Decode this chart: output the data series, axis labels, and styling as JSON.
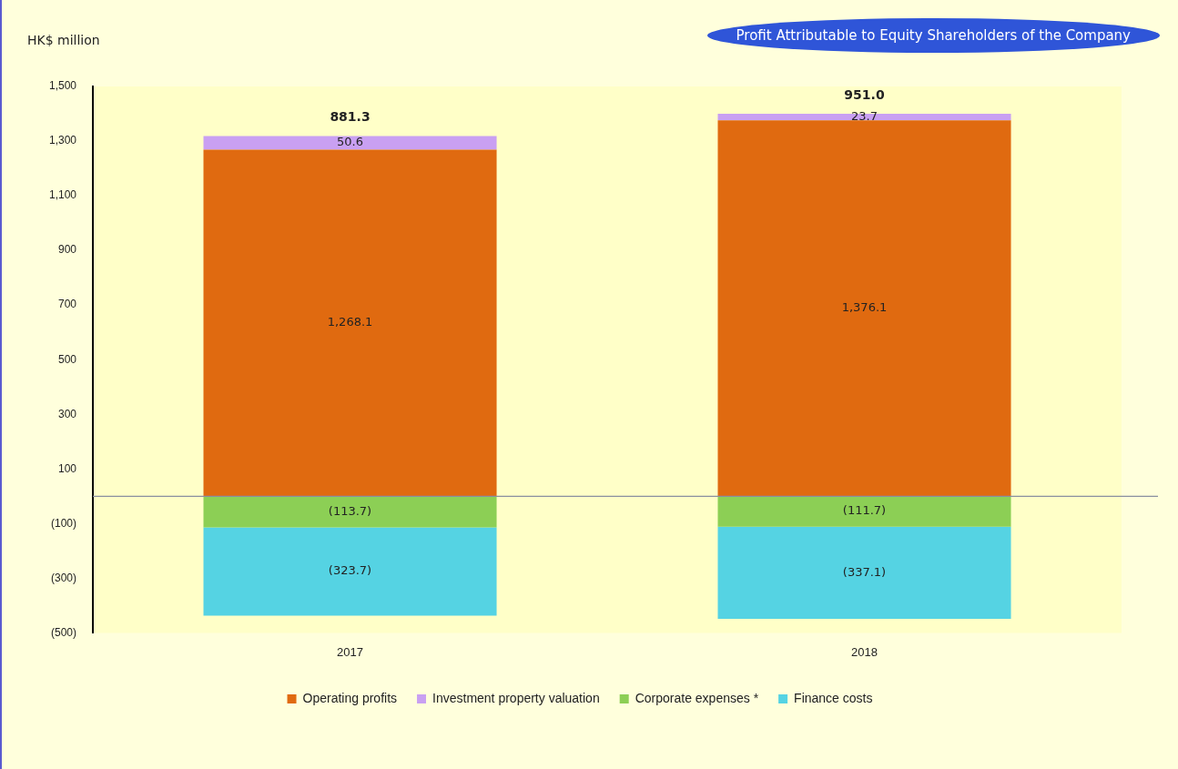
{
  "chart_data": {
    "type": "bar",
    "stacked": true,
    "ylabel": "HK$ million",
    "annotations": [
      "Profit Attributable to Equity Shareholders of the Company"
    ],
    "categories": [
      "2017",
      "2018"
    ],
    "series": [
      {
        "name": "Operating profits",
        "color": "#e06a10",
        "values": [
          1268.1,
          1376.1
        ],
        "value_labels": [
          "1,268.1",
          "1,376.1"
        ]
      },
      {
        "name": "Investment property valuation",
        "color": "#c9a0f2",
        "values": [
          50.6,
          23.7
        ],
        "value_labels": [
          "50.6",
          "23.7"
        ]
      },
      {
        "name": "Corporate expenses *",
        "color": "#8ccf55",
        "values": [
          -113.7,
          -111.7
        ],
        "value_labels": [
          "(113.7)",
          "(111.7)"
        ]
      },
      {
        "name": "Finance costs",
        "color": "#55d3e3",
        "values": [
          -323.7,
          -337.1
        ],
        "value_labels": [
          "(323.7)",
          "(337.1)"
        ]
      }
    ],
    "totals": [
      "881.3",
      "951.0"
    ],
    "ylim": [
      -500,
      1500
    ],
    "yticks": [
      {
        "value": -500,
        "label": "(500)"
      },
      {
        "value": -300,
        "label": "(300)"
      },
      {
        "value": -100,
        "label": "(100)"
      },
      100,
      300,
      500,
      700,
      900,
      {
        "value": 1100,
        "label": "1,100"
      },
      {
        "value": 1300,
        "label": "1,300"
      },
      {
        "value": 1500,
        "label": "1,500"
      }
    ],
    "ref_lines": [
      {
        "axis": "y",
        "value": 0,
        "color": "#8a8fa0"
      }
    ],
    "grid": false,
    "legend": "bottom"
  }
}
